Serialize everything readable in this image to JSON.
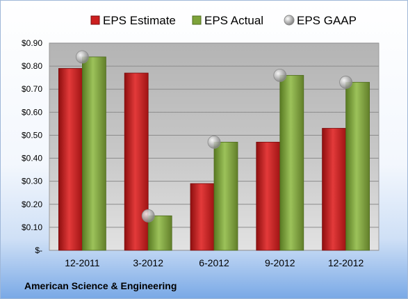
{
  "company_label": "American Science & Engineering",
  "chart_data": {
    "type": "bar",
    "title": "",
    "xlabel": "",
    "ylabel": "",
    "categories": [
      "12-2011",
      "3-2012",
      "6-2012",
      "9-2012",
      "12-2012"
    ],
    "series": [
      {
        "name": "EPS Estimate",
        "kind": "bar",
        "color": "#cc1f1f",
        "values": [
          0.79,
          0.77,
          0.29,
          0.47,
          0.53
        ]
      },
      {
        "name": "EPS Actual",
        "kind": "bar",
        "color": "#7ea33a",
        "values": [
          0.84,
          0.15,
          0.47,
          0.76,
          0.73
        ]
      },
      {
        "name": "EPS GAAP",
        "kind": "marker",
        "color": "#a9a9a9",
        "values": [
          0.84,
          0.15,
          0.47,
          0.76,
          0.73
        ]
      }
    ],
    "ylim": [
      0,
      0.9
    ],
    "yticks": [
      0,
      0.1,
      0.2,
      0.3,
      0.4,
      0.5,
      0.6,
      0.7,
      0.8,
      0.9
    ],
    "ytick_labels": [
      "$-",
      "$0.10",
      "$0.20",
      "$0.30",
      "$0.40",
      "$0.50",
      "$0.60",
      "$0.70",
      "$0.80",
      "$0.90"
    ],
    "grid": true,
    "legend_position": "top"
  }
}
